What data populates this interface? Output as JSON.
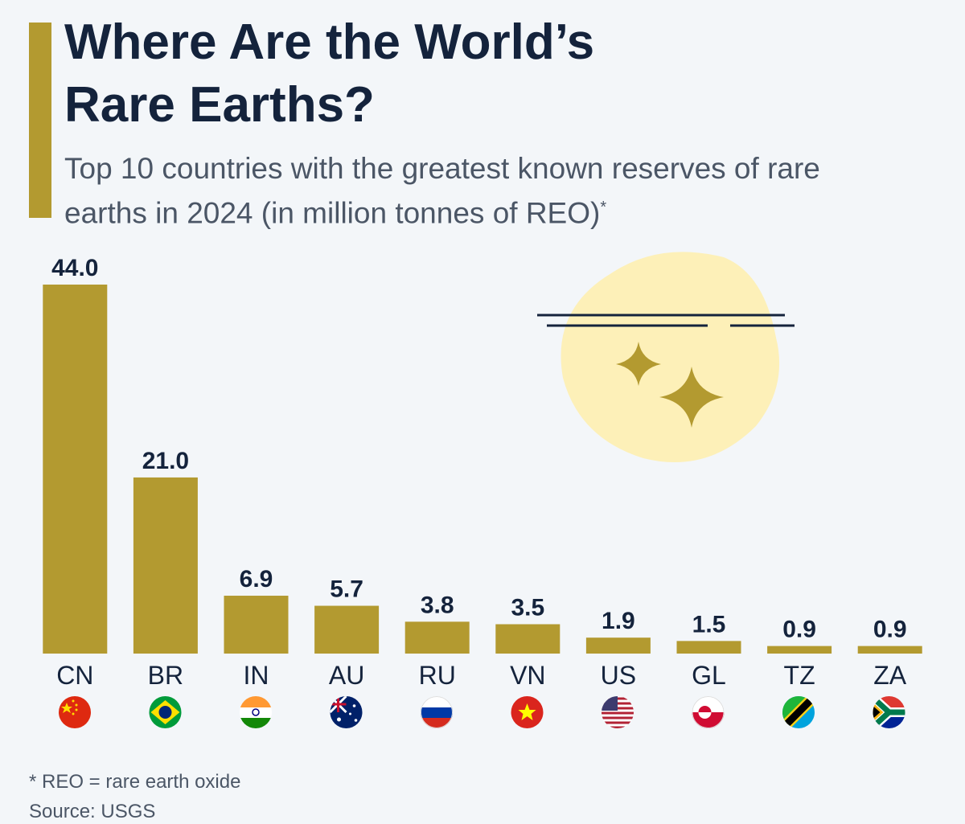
{
  "chart_data": {
    "type": "bar",
    "title": "Where Are the World’s Rare Earths?",
    "subtitle": "Top 10 countries with the greatest known reserves of rare earths in 2024 (in million tonnes of REO)",
    "subtitle_marker": "*",
    "footnote": "* REO = rare earth oxide",
    "source": "Source: USGS",
    "categories": [
      "CN",
      "BR",
      "IN",
      "AU",
      "RU",
      "VN",
      "US",
      "GL",
      "TZ",
      "ZA"
    ],
    "values": [
      44.0,
      21.0,
      6.9,
      5.7,
      3.8,
      3.5,
      1.9,
      1.5,
      0.9,
      0.9
    ],
    "value_labels": [
      "44.0",
      "21.0",
      "6.9",
      "5.7",
      "3.8",
      "3.5",
      "1.9",
      "1.5",
      "0.9",
      "0.9"
    ],
    "color": "#b39a30"
  }
}
